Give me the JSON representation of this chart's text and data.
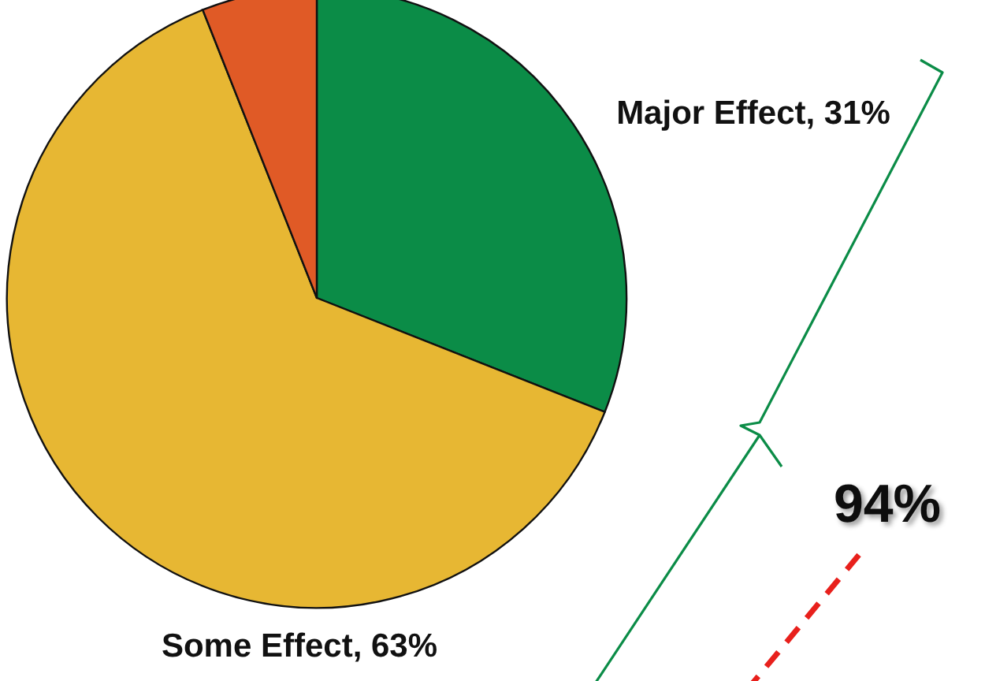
{
  "chart_data": {
    "type": "pie",
    "categories": [
      "Major Effect",
      "Some Effect",
      null
    ],
    "values": [
      31,
      63,
      6
    ],
    "colors": [
      "#0b8c47",
      "#e7b733",
      "#e05a26"
    ],
    "value_labels": [
      "31%",
      "63%",
      null
    ],
    "annotations": [
      "94%"
    ],
    "legend": false
  }
}
